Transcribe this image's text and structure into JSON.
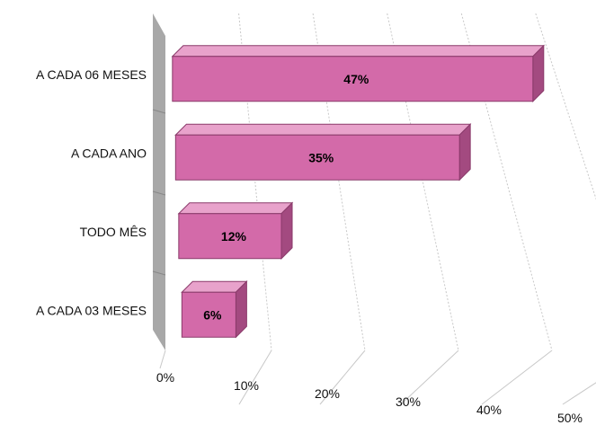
{
  "chart_data": {
    "type": "bar",
    "orientation": "horizontal",
    "three_d": true,
    "categories": [
      "A CADA 06 MESES",
      "A CADA ANO",
      "TODO MÊS",
      "A CADA 03 MESES"
    ],
    "values": [
      47,
      35,
      12,
      6
    ],
    "data_labels": [
      "47%",
      "35%",
      "12%",
      "6%"
    ],
    "x_ticks": [
      "0%",
      "10%",
      "20%",
      "30%",
      "40%",
      "50%"
    ],
    "xlim": [
      0,
      50
    ],
    "title": "",
    "xlabel": "",
    "ylabel": "",
    "grid": true,
    "legend": "none",
    "colors": {
      "bar_front": "#d36aa9",
      "bar_top": "#e8a2cb",
      "bar_side": "#a34a80",
      "bar_edge": "#8a3a6a",
      "back_wall": "#a8a8a8",
      "gridline": "#c8c8c8"
    }
  }
}
